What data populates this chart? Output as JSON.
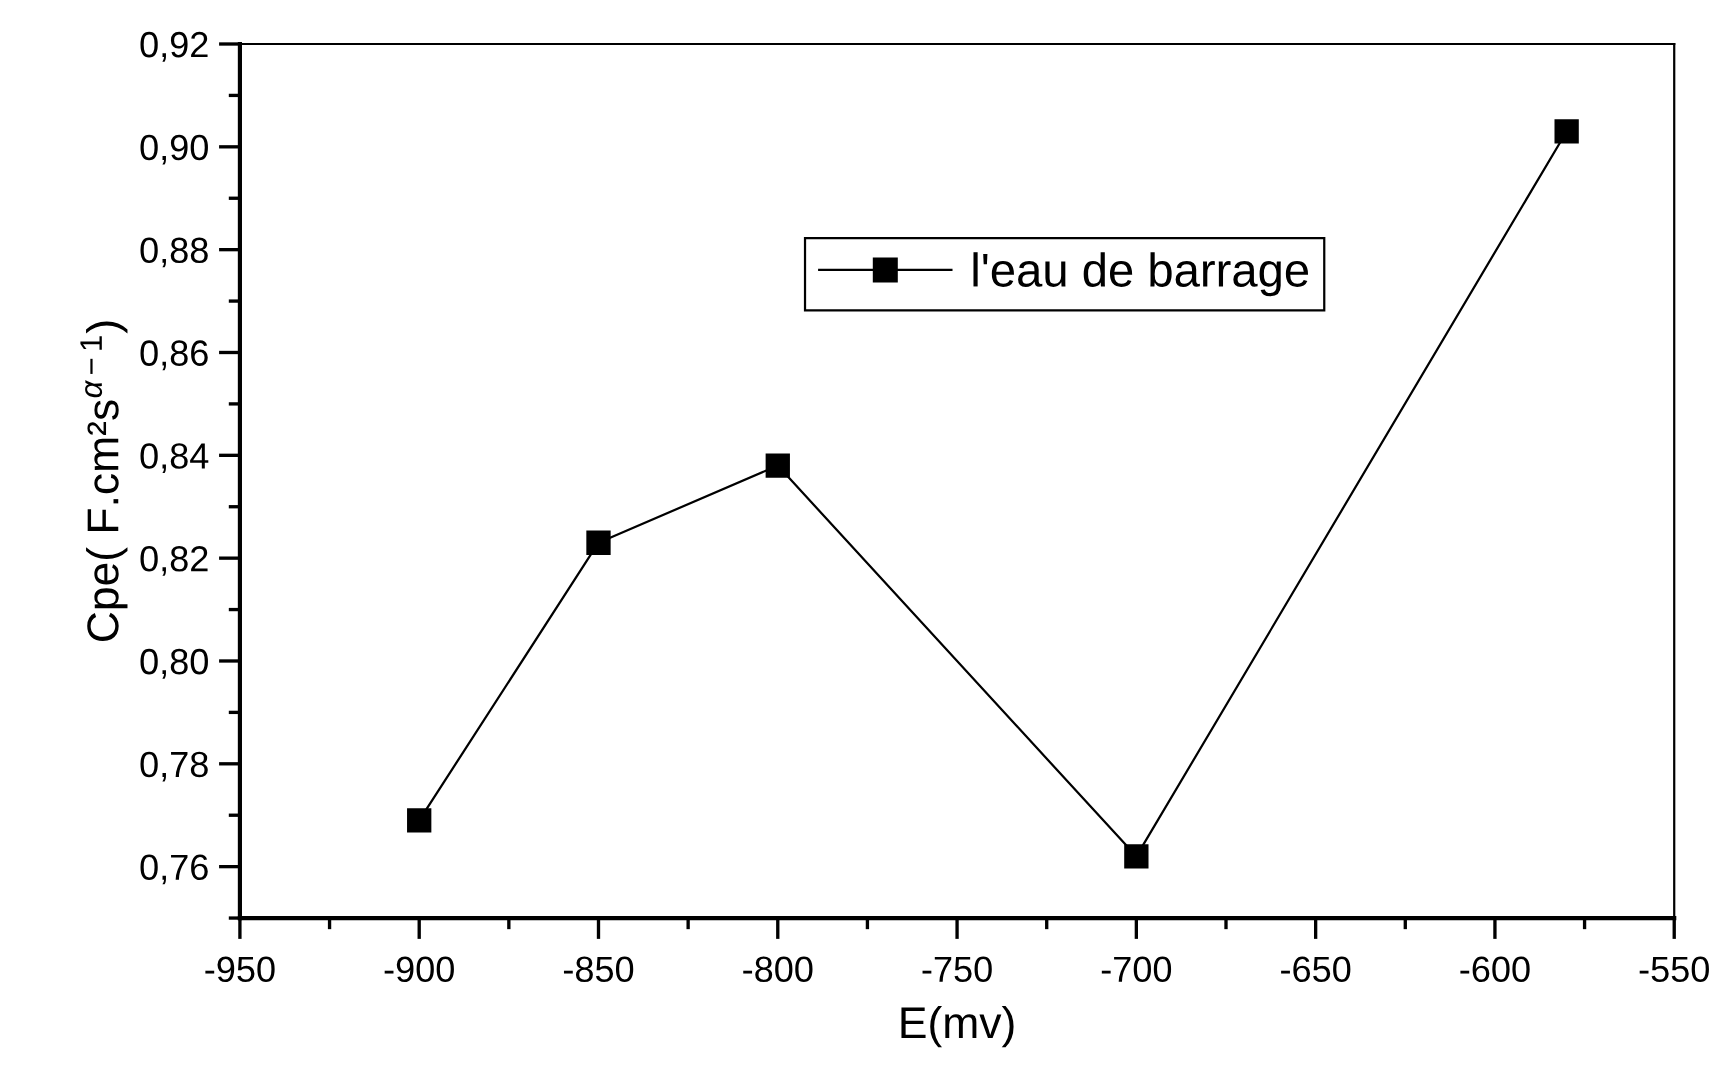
{
  "chart_data": {
    "type": "line",
    "xlabel": "E(mv)",
    "ylabel": "Cpe( F.cm²s$^{α−1}$)",
    "x": [
      -900,
      -850,
      -800,
      -700,
      -580
    ],
    "series": [
      {
        "name": "l'eau de barrage",
        "color": "#000000",
        "values": [
          0.769,
          0.823,
          0.838,
          0.762,
          0.903
        ]
      }
    ],
    "xlim": [
      -950,
      -550
    ],
    "xticks": [
      -950,
      {
        "value": -925,
        "label": null
      },
      -900,
      {
        "value": -875,
        "label": null
      },
      -850,
      {
        "value": -825,
        "label": null
      },
      -800,
      {
        "value": -775,
        "label": null
      },
      -750,
      {
        "value": -725,
        "label": null
      },
      -700,
      {
        "value": -675,
        "label": null
      },
      -650,
      {
        "value": -625,
        "label": null
      },
      -600,
      {
        "value": -575,
        "label": null
      },
      -550
    ],
    "ylim": [
      0.75,
      0.92
    ],
    "yticks": [
      {
        "value": 0.75,
        "label": null
      },
      {
        "value": 0.76,
        "label": "0,76"
      },
      {
        "value": 0.77,
        "label": null
      },
      {
        "value": 0.78,
        "label": "0,78"
      },
      {
        "value": 0.79,
        "label": null
      },
      {
        "value": 0.8,
        "label": "0,80"
      },
      {
        "value": 0.81,
        "label": null
      },
      {
        "value": 0.82,
        "label": "0,82"
      },
      {
        "value": 0.83,
        "label": null
      },
      {
        "value": 0.84,
        "label": "0,84"
      },
      {
        "value": 0.85,
        "label": null
      },
      {
        "value": 0.86,
        "label": "0,86"
      },
      {
        "value": 0.87,
        "label": null
      },
      {
        "value": 0.88,
        "label": "0,88"
      },
      {
        "value": 0.89,
        "label": null
      },
      {
        "value": 0.9,
        "label": "0,90"
      },
      {
        "value": 0.91,
        "label": null
      },
      {
        "value": 0.92,
        "label": "0,92"
      }
    ],
    "marker": "square",
    "line_style": "solid",
    "legend": "top"
  }
}
